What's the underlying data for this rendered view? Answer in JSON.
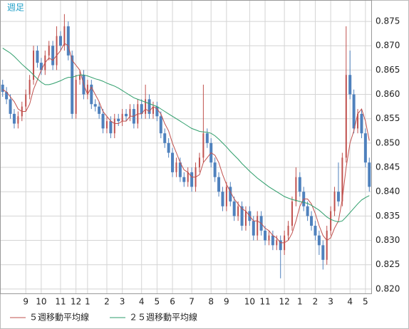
{
  "chart_data": {
    "type": "candlestick",
    "title": "週足",
    "categories": [
      null,
      null,
      null,
      null,
      null,
      null,
      "9",
      null,
      null,
      null,
      "10",
      null,
      null,
      null,
      null,
      "11",
      null,
      null,
      null,
      "12",
      null,
      null,
      "1",
      null,
      null,
      null,
      null,
      "2",
      null,
      null,
      null,
      "3",
      null,
      null,
      null,
      null,
      "4",
      null,
      null,
      null,
      "5",
      null,
      null,
      null,
      "6",
      null,
      null,
      null,
      null,
      "7",
      null,
      null,
      null,
      null,
      "8",
      null,
      null,
      null,
      "9",
      null,
      null,
      null,
      null,
      null,
      "10",
      null,
      null,
      null,
      "11",
      null,
      null,
      null,
      null,
      "12",
      null,
      null,
      null,
      "1",
      null,
      null,
      null,
      "2",
      null,
      null,
      null,
      "3",
      null,
      null,
      null,
      null,
      "4",
      null,
      null,
      null,
      "5",
      null
    ],
    "open": [
      0.862,
      0.8605,
      0.859,
      0.856,
      0.854,
      0.8555,
      0.8575,
      0.86,
      0.863,
      0.869,
      0.8665,
      0.865,
      0.868,
      0.87,
      0.866,
      0.872,
      0.87,
      0.874,
      0.868,
      0.856,
      0.863,
      0.864,
      0.86,
      0.862,
      0.858,
      0.8575,
      0.856,
      0.853,
      0.8545,
      0.852,
      0.855,
      0.8545,
      0.856,
      0.8555,
      0.857,
      0.854,
      0.858,
      0.856,
      0.859,
      0.856,
      0.8575,
      0.8555,
      0.852,
      0.85,
      0.848,
      0.844,
      0.846,
      0.843,
      0.842,
      0.844,
      0.841,
      0.845,
      0.847,
      0.852,
      0.85,
      0.846,
      0.843,
      0.84,
      0.837,
      0.841,
      0.838,
      0.835,
      0.837,
      0.833,
      0.836,
      0.834,
      0.831,
      0.835,
      0.832,
      0.83,
      0.831,
      0.829,
      0.83,
      0.828,
      0.831,
      0.833,
      0.838,
      0.843,
      0.84,
      0.837,
      0.835,
      0.833,
      0.831,
      0.829,
      0.826,
      0.832,
      0.836,
      0.84,
      0.838,
      0.847,
      0.864,
      0.86,
      0.853,
      0.856,
      0.852,
      0.846
    ],
    "high": [
      0.863,
      0.8615,
      0.86,
      0.857,
      0.8565,
      0.8585,
      0.861,
      0.864,
      0.87,
      0.87,
      0.8675,
      0.869,
      0.871,
      0.871,
      0.874,
      0.873,
      0.8765,
      0.875,
      0.869,
      0.864,
      0.865,
      0.865,
      0.863,
      0.863,
      0.859,
      0.8585,
      0.857,
      0.8555,
      0.8555,
      0.856,
      0.856,
      0.857,
      0.857,
      0.858,
      0.858,
      0.859,
      0.859,
      0.862,
      0.86,
      0.8585,
      0.8585,
      0.8565,
      0.853,
      0.851,
      0.849,
      0.847,
      0.847,
      0.844,
      0.845,
      0.845,
      0.846,
      0.848,
      0.862,
      0.853,
      0.851,
      0.847,
      0.844,
      0.841,
      0.842,
      0.842,
      0.839,
      0.838,
      0.838,
      0.837,
      0.837,
      0.835,
      0.836,
      0.836,
      0.833,
      0.832,
      0.832,
      0.831,
      0.831,
      0.832,
      0.834,
      0.839,
      0.845,
      0.844,
      0.841,
      0.838,
      0.836,
      0.834,
      0.832,
      0.83,
      0.833,
      0.837,
      0.841,
      0.846,
      0.848,
      0.874,
      0.869,
      0.861,
      0.857,
      0.857,
      0.853,
      0.847
    ],
    "low": [
      0.8595,
      0.858,
      0.855,
      0.853,
      0.853,
      0.8545,
      0.8565,
      0.859,
      0.862,
      0.8655,
      0.864,
      0.864,
      0.867,
      0.865,
      0.865,
      0.869,
      0.869,
      0.867,
      0.855,
      0.855,
      0.862,
      0.859,
      0.859,
      0.857,
      0.8565,
      0.855,
      0.852,
      0.852,
      0.851,
      0.851,
      0.8535,
      0.8535,
      0.8545,
      0.8545,
      0.853,
      0.853,
      0.855,
      0.855,
      0.855,
      0.855,
      0.8545,
      0.851,
      0.849,
      0.847,
      0.843,
      0.843,
      0.842,
      0.841,
      0.841,
      0.84,
      0.84,
      0.844,
      0.846,
      0.849,
      0.845,
      0.842,
      0.839,
      0.836,
      0.836,
      0.837,
      0.834,
      0.834,
      0.832,
      0.832,
      0.833,
      0.83,
      0.83,
      0.831,
      0.829,
      0.829,
      0.828,
      0.828,
      0.8222,
      0.827,
      0.83,
      0.832,
      0.837,
      0.839,
      0.836,
      0.834,
      0.832,
      0.83,
      0.827,
      0.824,
      0.825,
      0.831,
      0.835,
      0.837,
      0.837,
      0.846,
      0.859,
      0.852,
      0.852,
      0.851,
      0.845,
      0.84
    ],
    "close": [
      0.8605,
      0.859,
      0.856,
      0.854,
      0.8555,
      0.8575,
      0.86,
      0.863,
      0.869,
      0.8665,
      0.865,
      0.868,
      0.87,
      0.866,
      0.872,
      0.87,
      0.874,
      0.868,
      0.856,
      0.863,
      0.864,
      0.86,
      0.862,
      0.858,
      0.8575,
      0.856,
      0.853,
      0.8545,
      0.852,
      0.855,
      0.8545,
      0.856,
      0.8555,
      0.857,
      0.854,
      0.858,
      0.856,
      0.859,
      0.856,
      0.8575,
      0.8555,
      0.852,
      0.85,
      0.848,
      0.844,
      0.846,
      0.843,
      0.842,
      0.844,
      0.841,
      0.845,
      0.847,
      0.852,
      0.85,
      0.846,
      0.843,
      0.84,
      0.837,
      0.841,
      0.838,
      0.835,
      0.837,
      0.833,
      0.836,
      0.834,
      0.831,
      0.835,
      0.832,
      0.83,
      0.831,
      0.829,
      0.83,
      0.828,
      0.831,
      0.833,
      0.838,
      0.843,
      0.84,
      0.837,
      0.835,
      0.833,
      0.831,
      0.829,
      0.826,
      0.832,
      0.836,
      0.84,
      0.838,
      0.847,
      0.864,
      0.86,
      0.853,
      0.856,
      0.852,
      0.846,
      0.841
    ],
    "up_color": "#c0504d",
    "down_color": "#4f81bd",
    "series": [
      {
        "name": "５週移動平均線",
        "color": "#c0504d",
        "values": [
          0.861,
          0.8605,
          0.8595,
          0.8585,
          0.857,
          0.8565,
          0.8565,
          0.858,
          0.861,
          0.863,
          0.865,
          0.8665,
          0.8675,
          0.867,
          0.868,
          0.869,
          0.8705,
          0.87,
          0.867,
          0.866,
          0.865,
          0.862,
          0.86,
          0.8615,
          0.86,
          0.8585,
          0.8565,
          0.8555,
          0.8545,
          0.854,
          0.854,
          0.8545,
          0.8545,
          0.8555,
          0.8555,
          0.856,
          0.856,
          0.857,
          0.8565,
          0.8575,
          0.857,
          0.856,
          0.854,
          0.8525,
          0.85,
          0.848,
          0.846,
          0.8445,
          0.844,
          0.843,
          0.843,
          0.8435,
          0.846,
          0.847,
          0.848,
          0.8475,
          0.846,
          0.8435,
          0.8415,
          0.84,
          0.8385,
          0.8375,
          0.8365,
          0.836,
          0.835,
          0.834,
          0.834,
          0.8335,
          0.8325,
          0.832,
          0.831,
          0.8305,
          0.8295,
          0.8295,
          0.83,
          0.8315,
          0.834,
          0.837,
          0.8385,
          0.8385,
          0.8375,
          0.8355,
          0.833,
          0.831,
          0.83,
          0.8305,
          0.8325,
          0.834,
          0.8385,
          0.845,
          0.85,
          0.8525,
          0.856,
          0.857,
          0.8545,
          0.8505
        ]
      },
      {
        "name": "２５週移動平均線",
        "color": "#2e9e6b",
        "values": [
          0.8695,
          0.869,
          0.8685,
          0.8678,
          0.867,
          0.8662,
          0.8655,
          0.8648,
          0.864,
          0.8632,
          0.8625,
          0.862,
          0.862,
          0.8622,
          0.8625,
          0.8628,
          0.8632,
          0.8635,
          0.8635,
          0.8638,
          0.864,
          0.864,
          0.8638,
          0.8635,
          0.8632,
          0.863,
          0.8627,
          0.8623,
          0.862,
          0.8617,
          0.8613,
          0.8608,
          0.8603,
          0.8598,
          0.8593,
          0.859,
          0.8587,
          0.8584,
          0.8581,
          0.8578,
          0.8575,
          0.857,
          0.8565,
          0.856,
          0.8555,
          0.855,
          0.8545,
          0.854,
          0.8535,
          0.853,
          0.8527,
          0.8524,
          0.8523,
          0.8522,
          0.852,
          0.8515,
          0.8508,
          0.85,
          0.8492,
          0.8483,
          0.8475,
          0.8467,
          0.8458,
          0.845,
          0.8442,
          0.8435,
          0.8428,
          0.8422,
          0.8416,
          0.841,
          0.8405,
          0.84,
          0.8395,
          0.839,
          0.8387,
          0.8384,
          0.8382,
          0.838,
          0.8378,
          0.8376,
          0.8372,
          0.8367,
          0.8362,
          0.8355,
          0.8348,
          0.8343,
          0.834,
          0.8338,
          0.834,
          0.8348,
          0.8357,
          0.8366,
          0.8375,
          0.8383,
          0.8388,
          0.8392
        ]
      }
    ],
    "ylim": [
      0.8191,
      0.8794
    ],
    "yticks": [
      {
        "value": 0.82,
        "label": "0.820"
      },
      0.825,
      {
        "value": 0.83,
        "label": "0.830"
      },
      0.835,
      {
        "value": 0.84,
        "label": "0.840"
      },
      0.845,
      {
        "value": 0.85,
        "label": "0.850"
      },
      0.855,
      {
        "value": 0.86,
        "label": "0.860"
      },
      0.865,
      {
        "value": 0.87,
        "label": "0.870"
      },
      0.875
    ],
    "grid": true
  }
}
